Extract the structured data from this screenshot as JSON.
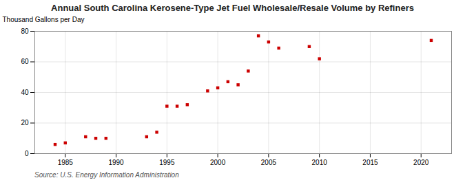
{
  "chart_data": {
    "type": "scatter",
    "title": "Annual South Carolina Kerosene-Type Jet Fuel Wholesale/Resale Volume by Refiners",
    "ylabel": "Thousand Gallons per Day",
    "source": "Source: U.S. Energy Information Administration",
    "x": [
      1984,
      1985,
      1987,
      1988,
      1989,
      1993,
      1994,
      1995,
      1996,
      1997,
      1999,
      2000,
      2001,
      2002,
      2003,
      2004,
      2005,
      2006,
      2009,
      2010,
      2021
    ],
    "values": [
      6,
      7,
      11,
      10,
      10,
      11,
      14,
      31,
      31,
      32,
      41,
      43,
      47,
      45,
      54,
      77,
      73,
      69,
      70,
      62,
      74
    ],
    "color": "#cc0000",
    "marker": "square",
    "xlim": [
      1982,
      2023
    ],
    "xticks": [
      1985,
      1990,
      1995,
      2000,
      2005,
      2010,
      2015,
      2020
    ],
    "ylim": [
      0,
      80
    ],
    "yticks": [
      0,
      20,
      40,
      60,
      80
    ],
    "grid": true
  }
}
